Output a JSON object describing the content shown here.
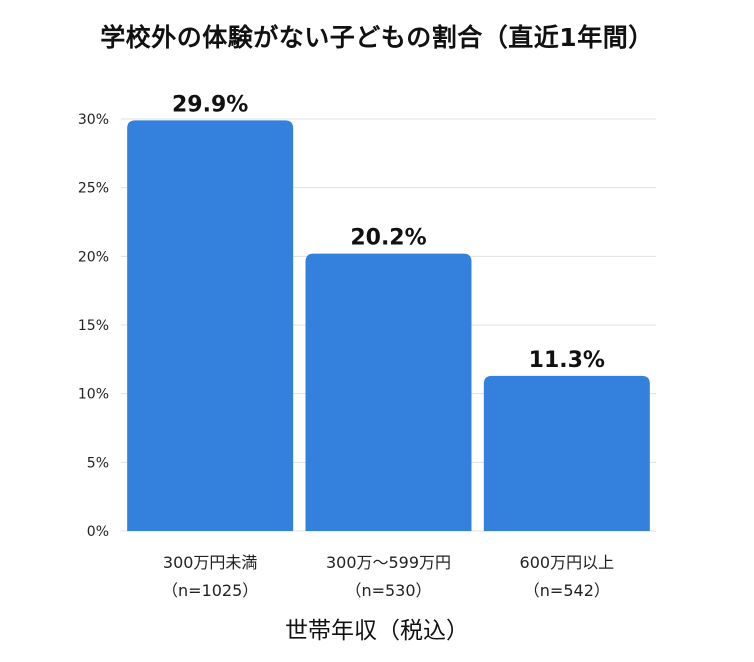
{
  "chart_data": {
    "type": "bar",
    "title": "学校外の体験がない子どもの割合（直近1年間）",
    "xlabel": "世帯年収（税込）",
    "ylabel": "",
    "ylim": [
      0,
      30
    ],
    "yticks": [
      0,
      5,
      10,
      15,
      20,
      25,
      30
    ],
    "ytick_suffix": "%",
    "grid": true,
    "categories": [
      {
        "line1": "300万円未満",
        "line2": "（n=1025）"
      },
      {
        "line1": "300万～599万円",
        "line2": "（n=530）"
      },
      {
        "line1": "600万円以上",
        "line2": "（n=542）"
      }
    ],
    "values": [
      29.9,
      20.2,
      11.3
    ],
    "value_labels": [
      "29.9%",
      "20.2%",
      "11.3%"
    ],
    "bar_color": "#3381dd",
    "grid_color": "#e0e0e0"
  }
}
